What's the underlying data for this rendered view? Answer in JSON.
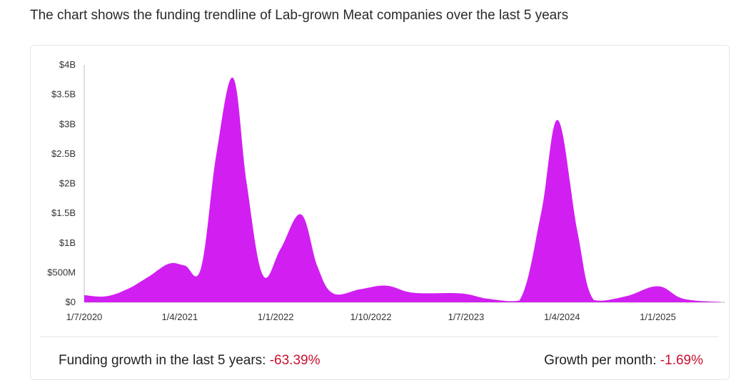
{
  "page": {
    "title": "The chart shows the funding trendline of Lab-grown Meat companies over the last 5 years"
  },
  "stats": {
    "growth_label": "Funding growth in the last 5 years: ",
    "growth_value": "-63.39%",
    "monthly_label": "Growth per month: ",
    "monthly_value": "-1.69%"
  },
  "colors": {
    "area": "#d11ff2",
    "axis": "#bdbdbd",
    "text": "#333333",
    "negative": "#c8102e"
  },
  "chart_data": {
    "type": "area",
    "title": "",
    "xlabel": "",
    "ylabel": "",
    "ylim": [
      0,
      4000000000
    ],
    "y_ticks": [
      {
        "value": 0,
        "label": "$0"
      },
      {
        "value": 500000000,
        "label": "$500M"
      },
      {
        "value": 1000000000,
        "label": "$1B"
      },
      {
        "value": 1500000000,
        "label": "$1.5B"
      },
      {
        "value": 2000000000,
        "label": "$2B"
      },
      {
        "value": 2500000000,
        "label": "$2.5B"
      },
      {
        "value": 3000000000,
        "label": "$3B"
      },
      {
        "value": 3500000000,
        "label": "$3.5B"
      },
      {
        "value": 4000000000,
        "label": "$4B"
      }
    ],
    "xlim": [
      "2020-07-01",
      "2025-07-01"
    ],
    "x_ticks": [
      {
        "date": "2020-07-01",
        "label": "1/7/2020"
      },
      {
        "date": "2021-04-01",
        "label": "1/4/2021"
      },
      {
        "date": "2022-01-01",
        "label": "1/1/2022"
      },
      {
        "date": "2022-10-01",
        "label": "1/10/2022"
      },
      {
        "date": "2023-07-01",
        "label": "1/7/2023"
      },
      {
        "date": "2024-04-01",
        "label": "1/4/2024"
      },
      {
        "date": "2025-01-01",
        "label": "1/1/2025"
      }
    ],
    "grid": false,
    "legend": "none",
    "series": [
      {
        "points": [
          {
            "x": "2020-07-01",
            "y": 120000000
          },
          {
            "x": "2020-09-01",
            "y": 100000000
          },
          {
            "x": "2020-11-01",
            "y": 220000000
          },
          {
            "x": "2021-01-01",
            "y": 430000000
          },
          {
            "x": "2021-03-01",
            "y": 650000000
          },
          {
            "x": "2021-04-15",
            "y": 620000000
          },
          {
            "x": "2021-06-01",
            "y": 580000000
          },
          {
            "x": "2021-07-15",
            "y": 2500000000
          },
          {
            "x": "2021-09-01",
            "y": 3780000000
          },
          {
            "x": "2021-10-10",
            "y": 2000000000
          },
          {
            "x": "2021-11-25",
            "y": 460000000
          },
          {
            "x": "2022-01-15",
            "y": 900000000
          },
          {
            "x": "2022-03-15",
            "y": 1480000000
          },
          {
            "x": "2022-05-01",
            "y": 600000000
          },
          {
            "x": "2022-06-15",
            "y": 150000000
          },
          {
            "x": "2022-09-01",
            "y": 220000000
          },
          {
            "x": "2022-11-15",
            "y": 280000000
          },
          {
            "x": "2023-02-01",
            "y": 160000000
          },
          {
            "x": "2023-06-15",
            "y": 150000000
          },
          {
            "x": "2023-09-01",
            "y": 60000000
          },
          {
            "x": "2023-12-01",
            "y": 30000000
          },
          {
            "x": "2024-02-01",
            "y": 1500000000
          },
          {
            "x": "2024-03-20",
            "y": 3070000000
          },
          {
            "x": "2024-05-15",
            "y": 1200000000
          },
          {
            "x": "2024-07-01",
            "y": 40000000
          },
          {
            "x": "2024-10-01",
            "y": 100000000
          },
          {
            "x": "2025-01-01",
            "y": 270000000
          },
          {
            "x": "2025-03-15",
            "y": 60000000
          },
          {
            "x": "2025-07-01",
            "y": 5000000
          }
        ]
      }
    ]
  }
}
